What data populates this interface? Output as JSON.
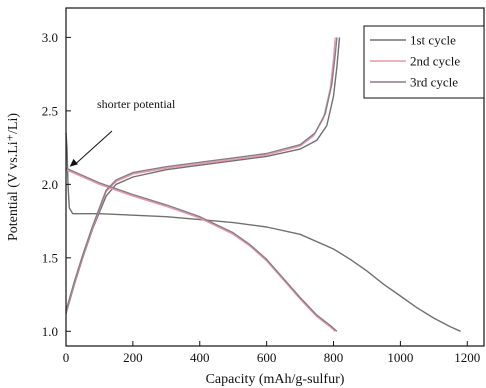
{
  "chart_data": {
    "type": "line",
    "xlabel": "Capacity (mAh/g-sulfur)",
    "ylabel": "Potential (V vs.Li⁺/Li)",
    "xlim": [
      0,
      1250
    ],
    "ylim": [
      0.9,
      3.2
    ],
    "xticks": [
      0,
      200,
      400,
      600,
      800,
      1000,
      1200
    ],
    "yticks": [
      1.0,
      1.5,
      2.0,
      2.5,
      3.0
    ],
    "xtick_labels": [
      "0",
      "200",
      "400",
      "600",
      "800",
      "1000",
      "1200"
    ],
    "ytick_labels": [
      "1.0",
      "1.5",
      "2.0",
      "2.5",
      "3.0"
    ],
    "grid": false,
    "legend_position": "top-right",
    "annotation": {
      "text": "shorter potential",
      "x": 5,
      "y": 2.12
    },
    "series": [
      {
        "name": "1st cycle",
        "color": "#707070",
        "discharge": [
          [
            0,
            2.35
          ],
          [
            3,
            2.25
          ],
          [
            6,
            2.0
          ],
          [
            10,
            1.84
          ],
          [
            20,
            1.8
          ],
          [
            100,
            1.8
          ],
          [
            200,
            1.79
          ],
          [
            300,
            1.78
          ],
          [
            400,
            1.76
          ],
          [
            500,
            1.74
          ],
          [
            600,
            1.71
          ],
          [
            700,
            1.66
          ],
          [
            800,
            1.56
          ],
          [
            850,
            1.49
          ],
          [
            900,
            1.41
          ],
          [
            950,
            1.32
          ],
          [
            1000,
            1.24
          ],
          [
            1050,
            1.16
          ],
          [
            1100,
            1.09
          ],
          [
            1150,
            1.03
          ],
          [
            1180,
            1.0
          ]
        ],
        "charge": [
          [
            0,
            1.12
          ],
          [
            25,
            1.32
          ],
          [
            50,
            1.5
          ],
          [
            80,
            1.7
          ],
          [
            120,
            1.92
          ],
          [
            150,
            2.0
          ],
          [
            200,
            2.05
          ],
          [
            300,
            2.1
          ],
          [
            400,
            2.13
          ],
          [
            500,
            2.16
          ],
          [
            600,
            2.19
          ],
          [
            700,
            2.24
          ],
          [
            750,
            2.3
          ],
          [
            780,
            2.4
          ],
          [
            800,
            2.6
          ],
          [
            810,
            2.8
          ],
          [
            818,
            3.0
          ]
        ]
      },
      {
        "name": "2nd cycle",
        "color": "#e59aa6",
        "discharge": [
          [
            0,
            2.1
          ],
          [
            50,
            2.05
          ],
          [
            100,
            2.0
          ],
          [
            200,
            1.92
          ],
          [
            300,
            1.85
          ],
          [
            400,
            1.77
          ],
          [
            500,
            1.66
          ],
          [
            550,
            1.58
          ],
          [
            600,
            1.48
          ],
          [
            650,
            1.35
          ],
          [
            700,
            1.22
          ],
          [
            750,
            1.1
          ],
          [
            790,
            1.03
          ],
          [
            805,
            1.0
          ]
        ],
        "charge": [
          [
            0,
            1.13
          ],
          [
            25,
            1.33
          ],
          [
            50,
            1.51
          ],
          [
            80,
            1.71
          ],
          [
            120,
            1.95
          ],
          [
            150,
            2.02
          ],
          [
            200,
            2.07
          ],
          [
            300,
            2.11
          ],
          [
            400,
            2.14
          ],
          [
            500,
            2.17
          ],
          [
            600,
            2.2
          ],
          [
            700,
            2.26
          ],
          [
            740,
            2.33
          ],
          [
            770,
            2.45
          ],
          [
            790,
            2.65
          ],
          [
            800,
            2.85
          ],
          [
            805,
            3.0
          ]
        ]
      },
      {
        "name": "3rd cycle",
        "color": "#8a7a8c",
        "discharge": [
          [
            0,
            2.11
          ],
          [
            50,
            2.06
          ],
          [
            100,
            2.01
          ],
          [
            200,
            1.93
          ],
          [
            300,
            1.86
          ],
          [
            400,
            1.78
          ],
          [
            500,
            1.67
          ],
          [
            550,
            1.59
          ],
          [
            600,
            1.49
          ],
          [
            650,
            1.36
          ],
          [
            700,
            1.23
          ],
          [
            750,
            1.11
          ],
          [
            790,
            1.04
          ],
          [
            810,
            1.0
          ]
        ],
        "charge": [
          [
            0,
            1.14
          ],
          [
            25,
            1.34
          ],
          [
            50,
            1.52
          ],
          [
            80,
            1.72
          ],
          [
            120,
            1.96
          ],
          [
            150,
            2.03
          ],
          [
            200,
            2.08
          ],
          [
            300,
            2.12
          ],
          [
            400,
            2.15
          ],
          [
            500,
            2.18
          ],
          [
            600,
            2.21
          ],
          [
            700,
            2.27
          ],
          [
            745,
            2.35
          ],
          [
            775,
            2.48
          ],
          [
            795,
            2.68
          ],
          [
            805,
            2.88
          ],
          [
            810,
            3.0
          ]
        ]
      }
    ]
  }
}
